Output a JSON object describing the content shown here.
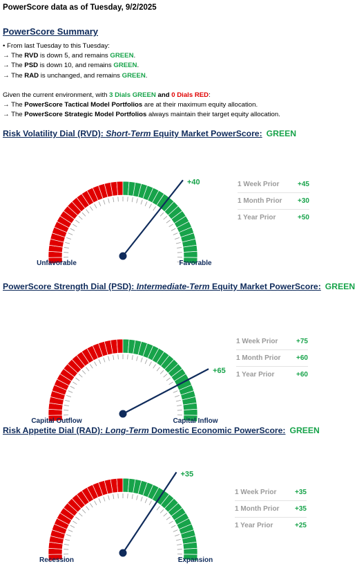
{
  "header": "PowerScore data as of Tuesday, 9/2/2025",
  "summary": {
    "title": "PowerScore Summary",
    "intro": "• From last Tuesday to this Tuesday:",
    "changes": [
      {
        "arrow": "→ The ",
        "dial": "RVD",
        "text": " is down 5, and remains ",
        "status": "GREEN",
        "end": "."
      },
      {
        "arrow": "→ The ",
        "dial": "PSD",
        "text": " is down 10, and remains ",
        "status": "GREEN",
        "end": "."
      },
      {
        "arrow": "→ The ",
        "dial": "RAD",
        "text": " is unchanged, and remains ",
        "status": "GREEN",
        "end": "."
      }
    ],
    "env_prefix": "Given the current environment, with ",
    "env_green": "3 Dials GREEN",
    "env_and": " and ",
    "env_red": "0 Dials RED",
    "env_end": ":",
    "tactical": {
      "arrow": "→ The ",
      "bold": "PowerScore Tactical Model Portfolios",
      "rest": " are at their maximum equity allocation."
    },
    "strategic": {
      "arrow": "→ The ",
      "bold": "PowerScore Strategic Model Portfolios",
      "rest": " always maintain their target equity allocation."
    }
  },
  "colors": {
    "red": "#e00000",
    "green": "#17a34a",
    "navy": "#0f2b5b"
  },
  "chart_data": [
    {
      "type": "gauge",
      "title_a": "Risk Volatility Dial (RVD):  ",
      "title_b": "Short-Term",
      "title_c": " Equity Market PowerScore:",
      "status": "GREEN",
      "value": 40,
      "value_label": "+40",
      "range": [
        -100,
        100
      ],
      "left_label": "Unfavorable",
      "right_label": "Favorable",
      "prior": [
        {
          "label": "1 Week Prior",
          "value": "+45"
        },
        {
          "label": "1 Month Prior",
          "value": "+30"
        },
        {
          "label": "1 Year Prior",
          "value": "+50"
        }
      ]
    },
    {
      "type": "gauge",
      "title_a": "PowerScore Strength Dial (PSD): ",
      "title_b": "Intermediate-Term",
      "title_c": " Equity Market PowerScore:",
      "status": "GREEN",
      "value": 65,
      "value_label": "+65",
      "range": [
        -100,
        100
      ],
      "left_label": "Capital Outflow",
      "right_label": "Capital Inflow",
      "prior": [
        {
          "label": "1 Week Prior",
          "value": "+75"
        },
        {
          "label": "1 Month Prior",
          "value": "+60"
        },
        {
          "label": "1 Year Prior",
          "value": "+60"
        }
      ]
    },
    {
      "type": "gauge",
      "title_a": "Risk Appetite Dial (RAD):  ",
      "title_b": "Long-Term",
      "title_c": " Domestic Economic PowerScore:",
      "status": "GREEN",
      "value": 35,
      "value_label": "+35",
      "range": [
        -100,
        100
      ],
      "left_label": "Recession",
      "right_label": "Expansion",
      "prior": [
        {
          "label": "1 Week Prior",
          "value": "+35"
        },
        {
          "label": "1 Month Prior",
          "value": "+35"
        },
        {
          "label": "1 Year Prior",
          "value": "+25"
        }
      ]
    }
  ]
}
